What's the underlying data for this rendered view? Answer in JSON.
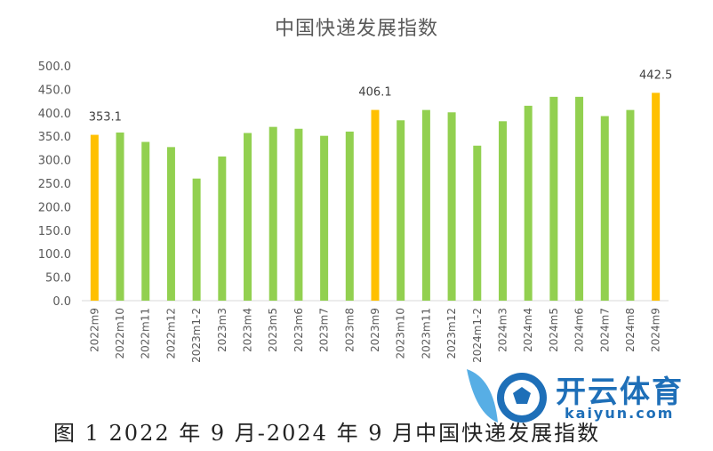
{
  "chart_data": {
    "type": "bar",
    "title": "中国快递发展指数",
    "xlabel": "",
    "ylabel": "",
    "ylim": [
      0,
      500
    ],
    "yticks": [
      "0.0",
      "50.0",
      "100.0",
      "150.0",
      "200.0",
      "250.0",
      "300.0",
      "350.0",
      "400.0",
      "450.0",
      "500.0"
    ],
    "grid": false,
    "categories": [
      "2022m9",
      "2022m10",
      "2022m11",
      "2022m12",
      "2023m1-2",
      "2023m3",
      "2023m4",
      "2023m5",
      "2023m6",
      "2023m7",
      "2023m8",
      "2023m9",
      "2023m10",
      "2023m11",
      "2023m12",
      "2024m1-2",
      "2024m3",
      "2024m4",
      "2024m5",
      "2024m6",
      "2024m7",
      "2024m8",
      "2024m9"
    ],
    "values": [
      353.1,
      358,
      338,
      327,
      260,
      307,
      357,
      370,
      366,
      351,
      360,
      406.1,
      384,
      406,
      401,
      330,
      382,
      415,
      434,
      434,
      393,
      406,
      442.5
    ],
    "highlight_indices": [
      0,
      11,
      22
    ],
    "data_labels": {
      "0": "353.1",
      "11": "406.1",
      "22": "442.5"
    },
    "colors": {
      "default": "#92D050",
      "highlight": "#FFC000"
    }
  },
  "caption": "图 1 2022 年 9 月-2024 年 9 月中国快递发展指数",
  "watermark": {
    "brand": "开云体育",
    "site": "kaiyun.com"
  }
}
